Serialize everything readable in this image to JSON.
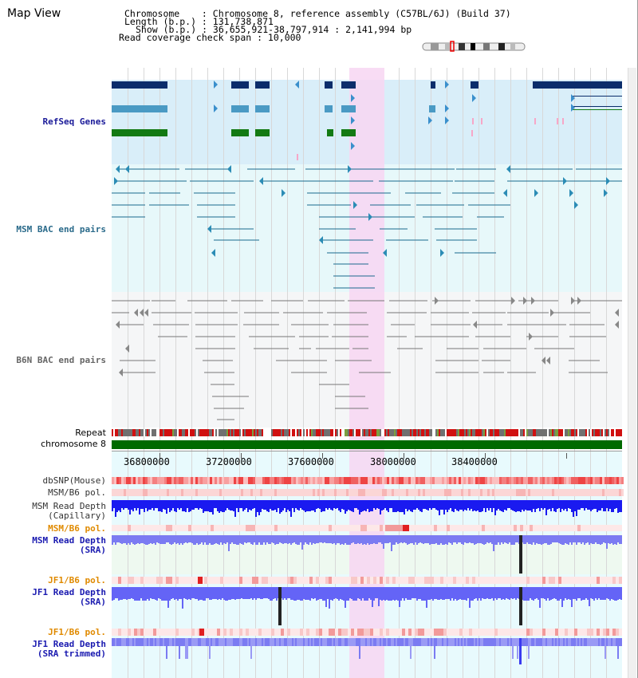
{
  "app": {
    "title": "Map View"
  },
  "info": {
    "chromosome": "Chromosome    : Chromosome 8, reference assembly (C57BL/6J) (Build 37)",
    "length": "Length (b.p.) : 131,738,871",
    "show": "Show (b.p.) : 36,655,921-38,797,914 : 2,141,994 bp",
    "span": "Read coverage check span : 10,000"
  },
  "tracks": {
    "refseq": "RefSeq Genes",
    "msm_bac": "MSM BAC end pairs",
    "b6n_bac": "B6N BAC end pairs",
    "repeat": "Repeat",
    "chromosome": "chromosome 8",
    "dbsnp": "dbSNP(Mouse)",
    "msm_b6_pol_1": "MSM/B6 pol.",
    "msm_depth_cap": "MSM Read Depth\n(Capillary)",
    "msm_b6_pol_2": "MSM/B6 pol.",
    "msm_depth_sra": "MSM Read Depth\n(SRA)",
    "jf1_b6_pol_1": "JF1/B6 pol.",
    "jf1_depth": "JF1 Read Depth\n(SRA)",
    "jf1_b6_pol_2": "JF1/B6 pol.",
    "jf1_depth_trim": "JF1 Read Depth\n(SRA trimmed)"
  },
  "axis": {
    "ticks": [
      "36800000",
      "37200000",
      "37600000",
      "38000000",
      "38400000"
    ]
  },
  "colors": {
    "refseq_label": "#1a1a99",
    "msm_label": "#2a6a8a",
    "b6n_label": "#666666",
    "orange_label": "#e08a00",
    "blue_label": "#1a1ab0",
    "highlight": "#f7d6f2"
  }
}
